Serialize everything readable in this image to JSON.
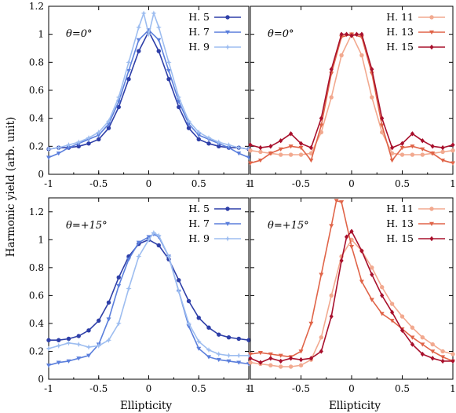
{
  "figure": {
    "ylabel": "Harmonic yield (arb. unit)",
    "xlabel": "Ellipticity"
  },
  "colors": {
    "H. 5": "#2e3fa8",
    "H. 7": "#5b7fdc",
    "H. 9": "#9dbdf0",
    "H. 11": "#f2a98f",
    "H. 13": "#e06448",
    "H. 15": "#a8102c"
  },
  "chart_data": [
    {
      "type": "line",
      "annotation": "θ=0°",
      "xlim": [
        -1,
        1
      ],
      "ylim": [
        0,
        1.2
      ],
      "xticks": [
        "-1",
        "-0.5",
        "0",
        "0.5",
        "1"
      ],
      "yticks": [
        "0",
        "0.2",
        "0.4",
        "0.6",
        "0.8",
        "1",
        "1.2"
      ],
      "legend": "top-right",
      "series": [
        {
          "name": "H. 5",
          "marker": "circle",
          "x": [
            -1,
            -0.9,
            -0.8,
            -0.7,
            -0.6,
            -0.5,
            -0.4,
            -0.3,
            -0.2,
            -0.1,
            0,
            0.1,
            0.2,
            0.3,
            0.4,
            0.5,
            0.6,
            0.7,
            0.8,
            0.9,
            1
          ],
          "y": [
            0.18,
            0.19,
            0.19,
            0.2,
            0.22,
            0.25,
            0.33,
            0.48,
            0.68,
            0.88,
            1.02,
            0.88,
            0.68,
            0.48,
            0.33,
            0.25,
            0.22,
            0.2,
            0.19,
            0.19,
            0.18
          ]
        },
        {
          "name": "H. 7",
          "marker": "triangle",
          "x": [
            -1,
            -0.9,
            -0.8,
            -0.7,
            -0.6,
            -0.5,
            -0.4,
            -0.3,
            -0.2,
            -0.1,
            0,
            0.1,
            0.2,
            0.3,
            0.4,
            0.5,
            0.6,
            0.7,
            0.8,
            0.9,
            1
          ],
          "y": [
            0.12,
            0.15,
            0.19,
            0.22,
            0.25,
            0.28,
            0.36,
            0.52,
            0.74,
            0.96,
            1.03,
            0.96,
            0.74,
            0.52,
            0.36,
            0.28,
            0.25,
            0.22,
            0.19,
            0.15,
            0.12
          ]
        },
        {
          "name": "H. 9",
          "marker": "star",
          "x": [
            -1,
            -0.9,
            -0.8,
            -0.7,
            -0.6,
            -0.5,
            -0.4,
            -0.3,
            -0.2,
            -0.1,
            -0.05,
            0,
            0.05,
            0.1,
            0.2,
            0.3,
            0.4,
            0.5,
            0.6,
            0.7,
            0.8,
            0.9,
            1
          ],
          "y": [
            0.18,
            0.19,
            0.21,
            0.23,
            0.26,
            0.3,
            0.38,
            0.55,
            0.8,
            1.05,
            1.15,
            1.0,
            1.15,
            1.05,
            0.8,
            0.55,
            0.38,
            0.3,
            0.26,
            0.23,
            0.21,
            0.19,
            0.18
          ]
        }
      ]
    },
    {
      "type": "line",
      "annotation": "θ=0°",
      "xlim": [
        -1,
        1
      ],
      "ylim": [
        0,
        1.2
      ],
      "xticks": [
        "-1",
        "-0.5",
        "0",
        "0.5",
        "1"
      ],
      "yticks": [],
      "legend": "top-right",
      "series": [
        {
          "name": "H. 11",
          "marker": "circle",
          "x": [
            -1,
            -0.9,
            -0.8,
            -0.7,
            -0.6,
            -0.5,
            -0.4,
            -0.3,
            -0.2,
            -0.1,
            0,
            0.1,
            0.2,
            0.3,
            0.4,
            0.5,
            0.6,
            0.7,
            0.8,
            0.9,
            1
          ],
          "y": [
            0.17,
            0.16,
            0.15,
            0.14,
            0.14,
            0.14,
            0.15,
            0.3,
            0.55,
            0.85,
            1.0,
            0.85,
            0.55,
            0.3,
            0.15,
            0.14,
            0.14,
            0.14,
            0.15,
            0.16,
            0.17
          ]
        },
        {
          "name": "H. 13",
          "marker": "triangle",
          "x": [
            -1,
            -0.9,
            -0.8,
            -0.7,
            -0.6,
            -0.5,
            -0.4,
            -0.3,
            -0.2,
            -0.1,
            0,
            0.1,
            0.2,
            0.3,
            0.4,
            0.5,
            0.6,
            0.7,
            0.8,
            0.9,
            1
          ],
          "y": [
            0.08,
            0.1,
            0.15,
            0.18,
            0.2,
            0.19,
            0.1,
            0.35,
            0.72,
            0.98,
            1.0,
            0.98,
            0.72,
            0.35,
            0.1,
            0.19,
            0.2,
            0.18,
            0.15,
            0.1,
            0.08
          ]
        },
        {
          "name": "H. 15",
          "marker": "diamond",
          "x": [
            -1,
            -0.9,
            -0.8,
            -0.7,
            -0.6,
            -0.5,
            -0.4,
            -0.3,
            -0.2,
            -0.1,
            -0.05,
            0,
            0.05,
            0.1,
            0.2,
            0.3,
            0.4,
            0.5,
            0.6,
            0.7,
            0.8,
            0.9,
            1
          ],
          "y": [
            0.21,
            0.19,
            0.2,
            0.24,
            0.29,
            0.22,
            0.19,
            0.4,
            0.75,
            1.0,
            1.0,
            0.99,
            1.0,
            1.0,
            0.75,
            0.4,
            0.19,
            0.22,
            0.29,
            0.24,
            0.2,
            0.19,
            0.21
          ]
        }
      ]
    },
    {
      "type": "line",
      "annotation": "θ=+15°",
      "xlim": [
        -1,
        1
      ],
      "ylim": [
        0,
        1.3
      ],
      "xticks": [
        "-1",
        "-0.5",
        "0",
        "0.5",
        "1"
      ],
      "yticks": [
        "0",
        "0.2",
        "0.4",
        "0.6",
        "0.8",
        "1",
        "1.2"
      ],
      "legend": "top-right",
      "series": [
        {
          "name": "H. 5",
          "marker": "circle",
          "x": [
            -1,
            -0.9,
            -0.8,
            -0.7,
            -0.6,
            -0.5,
            -0.4,
            -0.3,
            -0.2,
            -0.1,
            0,
            0.1,
            0.2,
            0.3,
            0.4,
            0.5,
            0.6,
            0.7,
            0.8,
            0.9,
            1
          ],
          "y": [
            0.28,
            0.28,
            0.29,
            0.31,
            0.35,
            0.42,
            0.55,
            0.73,
            0.88,
            0.97,
            1.0,
            0.96,
            0.86,
            0.71,
            0.56,
            0.44,
            0.37,
            0.32,
            0.3,
            0.29,
            0.28
          ]
        },
        {
          "name": "H. 7",
          "marker": "triangle",
          "x": [
            -1,
            -0.9,
            -0.8,
            -0.7,
            -0.6,
            -0.5,
            -0.4,
            -0.3,
            -0.2,
            -0.1,
            0,
            0.05,
            0.1,
            0.2,
            0.3,
            0.4,
            0.5,
            0.6,
            0.7,
            0.8,
            0.9,
            1
          ],
          "y": [
            0.1,
            0.12,
            0.13,
            0.15,
            0.17,
            0.25,
            0.43,
            0.67,
            0.86,
            0.98,
            1.02,
            1.04,
            1.02,
            0.88,
            0.63,
            0.38,
            0.22,
            0.16,
            0.14,
            0.13,
            0.12,
            0.11
          ]
        },
        {
          "name": "H. 9",
          "marker": "star",
          "x": [
            -1,
            -0.9,
            -0.8,
            -0.7,
            -0.6,
            -0.5,
            -0.4,
            -0.3,
            -0.2,
            -0.1,
            0,
            0.05,
            0.1,
            0.2,
            0.3,
            0.4,
            0.5,
            0.6,
            0.7,
            0.8,
            0.9,
            1
          ],
          "y": [
            0.22,
            0.24,
            0.26,
            0.25,
            0.23,
            0.24,
            0.28,
            0.4,
            0.65,
            0.88,
            1.0,
            1.05,
            1.03,
            0.88,
            0.63,
            0.4,
            0.27,
            0.21,
            0.18,
            0.17,
            0.17,
            0.17
          ]
        }
      ]
    },
    {
      "type": "line",
      "annotation": "θ=+15°",
      "xlim": [
        -1,
        1
      ],
      "ylim": [
        0,
        1.3
      ],
      "xticks": [
        "-1",
        "-0.5",
        "0",
        "0.5",
        "1"
      ],
      "yticks": [],
      "legend": "top-right",
      "series": [
        {
          "name": "H. 11",
          "marker": "circle",
          "x": [
            -1,
            -0.9,
            -0.8,
            -0.7,
            -0.6,
            -0.5,
            -0.4,
            -0.3,
            -0.2,
            -0.1,
            0,
            0.1,
            0.2,
            0.3,
            0.4,
            0.5,
            0.6,
            0.7,
            0.8,
            0.9,
            1
          ],
          "y": [
            0.12,
            0.11,
            0.1,
            0.09,
            0.09,
            0.1,
            0.14,
            0.3,
            0.6,
            0.88,
            1.0,
            0.92,
            0.8,
            0.66,
            0.54,
            0.45,
            0.37,
            0.3,
            0.25,
            0.2,
            0.18
          ]
        },
        {
          "name": "H. 13",
          "marker": "triangle",
          "x": [
            -1,
            -0.9,
            -0.8,
            -0.7,
            -0.6,
            -0.5,
            -0.4,
            -0.3,
            -0.2,
            -0.15,
            -0.1,
            0,
            0.1,
            0.2,
            0.3,
            0.4,
            0.5,
            0.6,
            0.7,
            0.8,
            0.9,
            1
          ],
          "y": [
            0.18,
            0.19,
            0.18,
            0.17,
            0.16,
            0.2,
            0.4,
            0.75,
            1.1,
            1.28,
            1.27,
            0.95,
            0.7,
            0.57,
            0.47,
            0.42,
            0.36,
            0.3,
            0.25,
            0.2,
            0.16,
            0.13
          ]
        },
        {
          "name": "H. 15",
          "marker": "diamond",
          "x": [
            -1,
            -0.9,
            -0.8,
            -0.7,
            -0.6,
            -0.5,
            -0.4,
            -0.3,
            -0.2,
            -0.1,
            -0.05,
            0,
            0.1,
            0.2,
            0.3,
            0.4,
            0.5,
            0.6,
            0.7,
            0.8,
            0.9,
            1
          ],
          "y": [
            0.15,
            0.12,
            0.15,
            0.13,
            0.15,
            0.14,
            0.15,
            0.2,
            0.45,
            0.85,
            1.02,
            1.06,
            0.92,
            0.75,
            0.6,
            0.48,
            0.35,
            0.25,
            0.18,
            0.15,
            0.13,
            0.13
          ]
        }
      ]
    }
  ]
}
